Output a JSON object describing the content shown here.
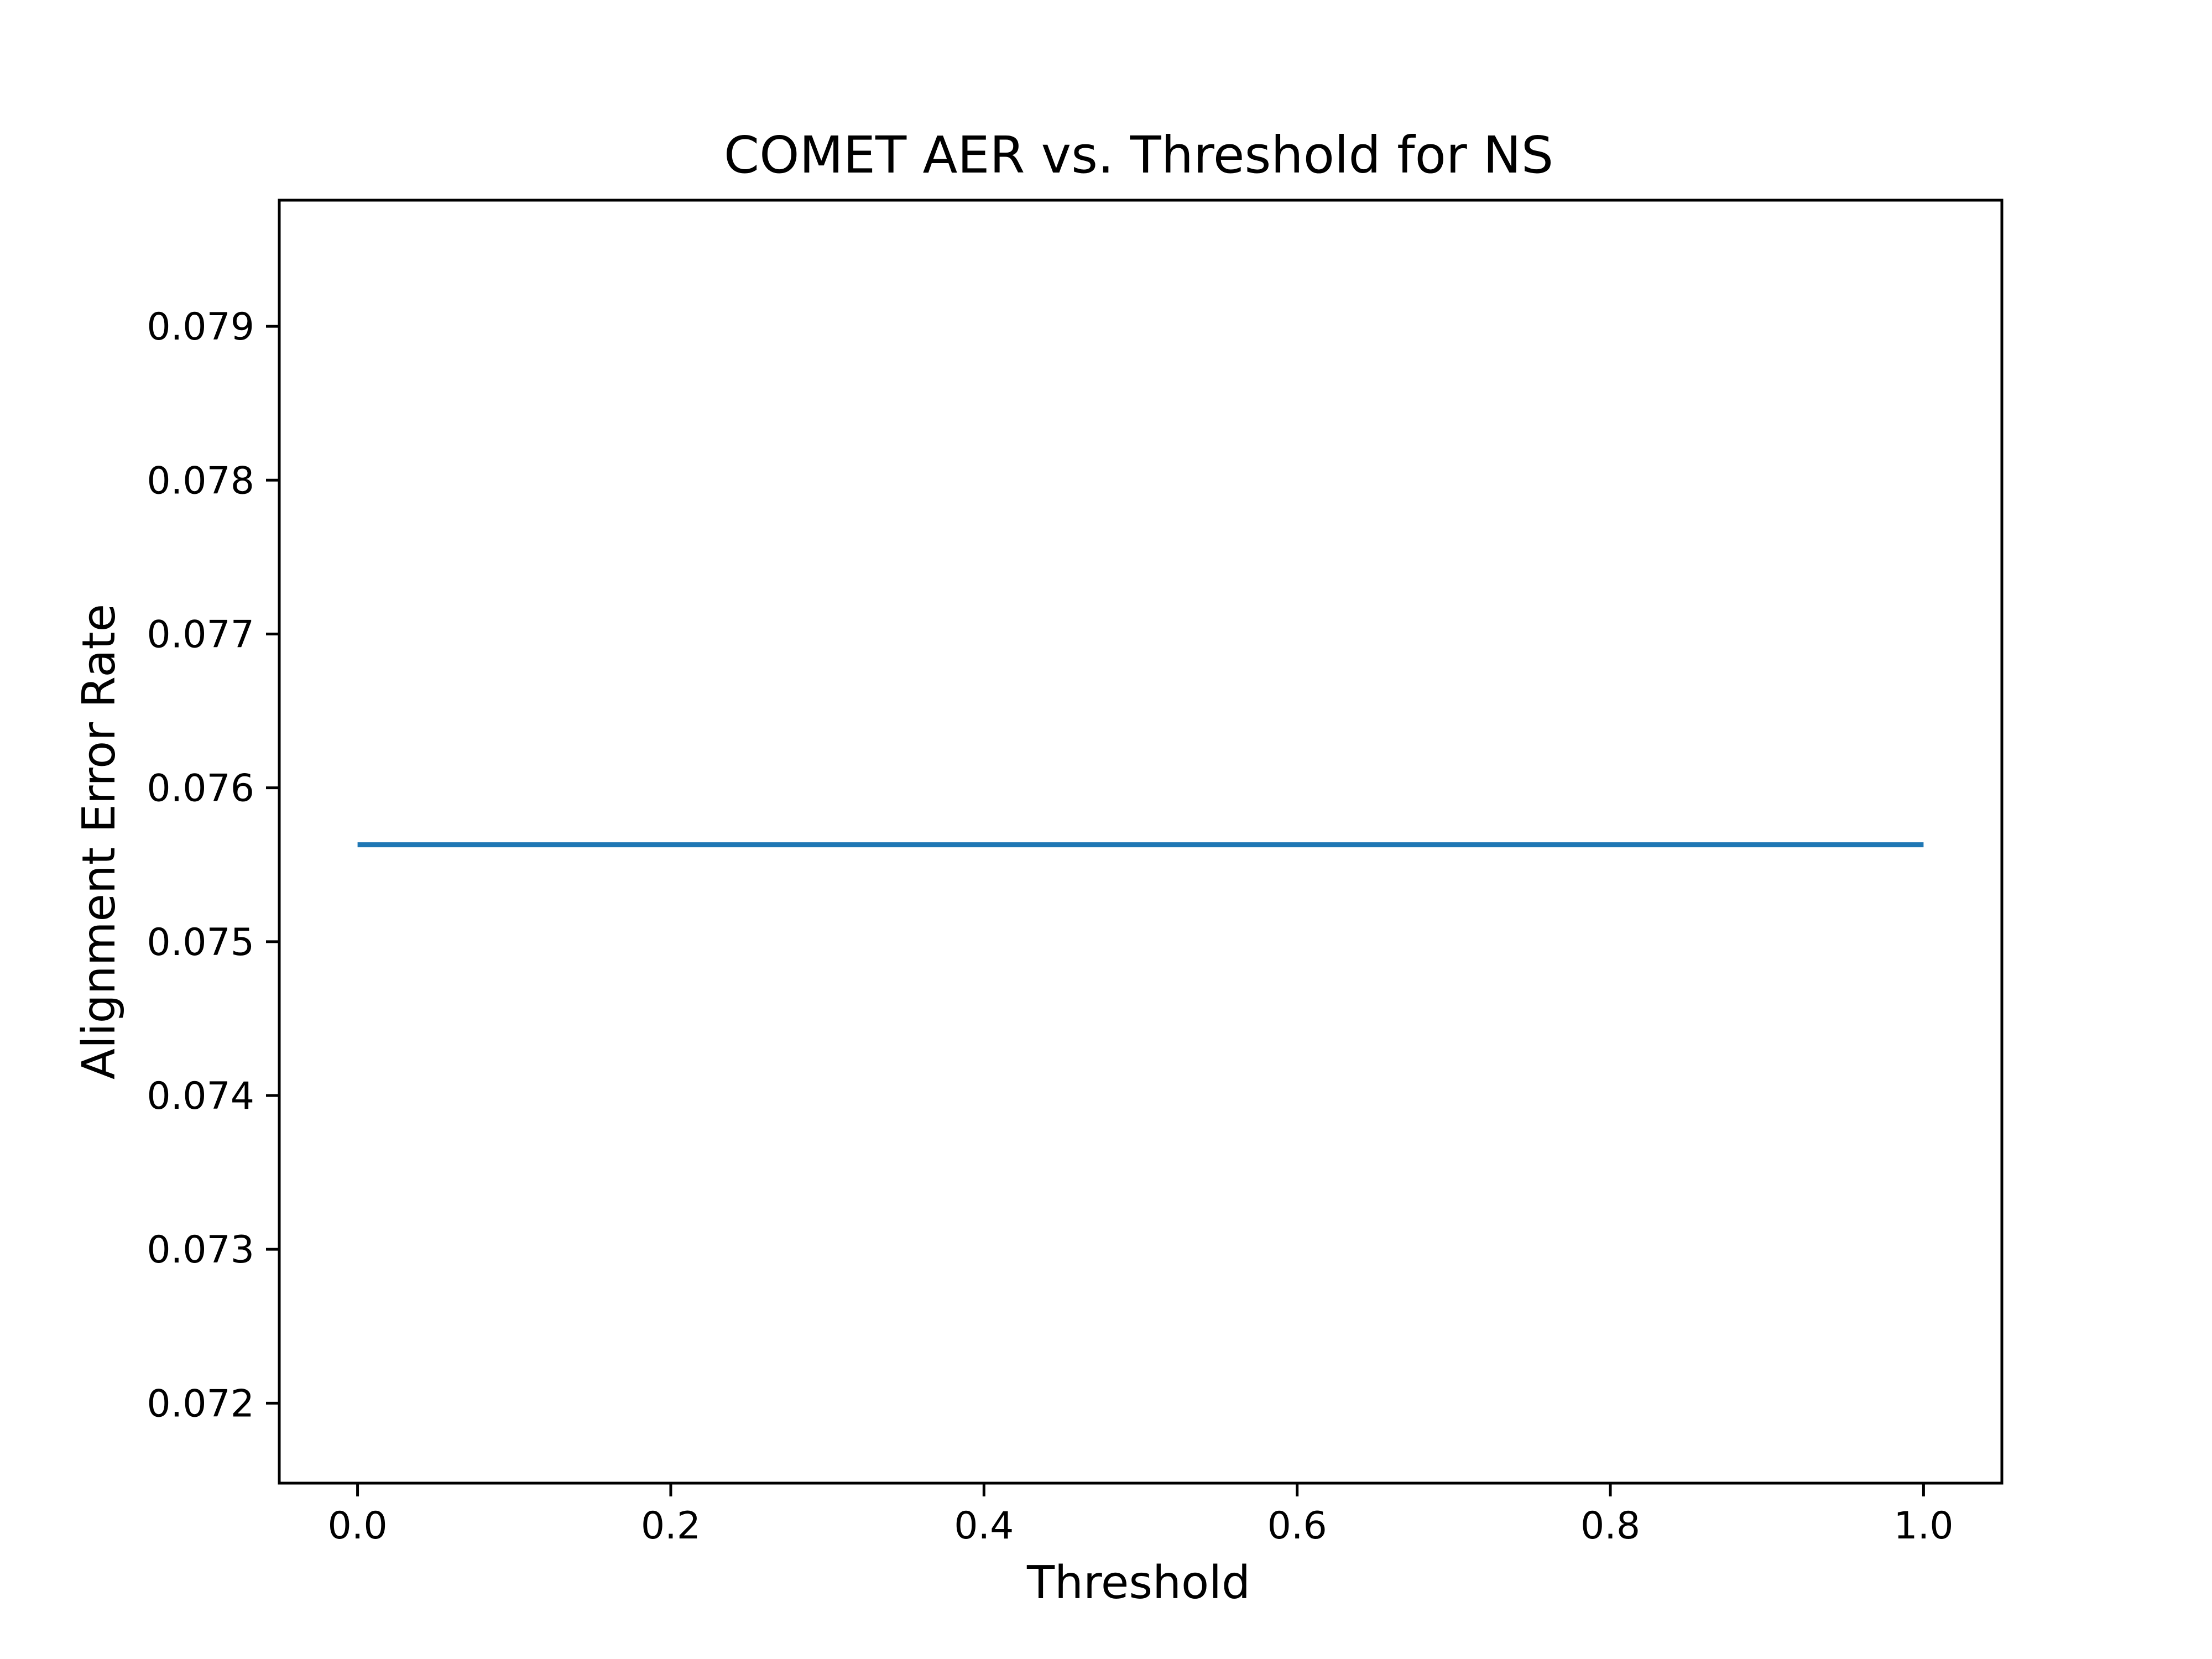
{
  "chart_data": {
    "type": "line",
    "title": "COMET AER vs. Threshold for NS",
    "xlabel": "Threshold",
    "ylabel": "Alignment Error Rate",
    "xlim": [
      -0.05,
      1.05
    ],
    "ylim": [
      0.07148,
      0.07982
    ],
    "xticks": [
      {
        "value": 0.0,
        "label": "0.0"
      },
      {
        "value": 0.2,
        "label": "0.2"
      },
      {
        "value": 0.4,
        "label": "0.4"
      },
      {
        "value": 0.6,
        "label": "0.6"
      },
      {
        "value": 0.8,
        "label": "0.8"
      },
      {
        "value": 1.0,
        "label": "1.0"
      }
    ],
    "yticks": [
      {
        "value": 0.072,
        "label": "0.072"
      },
      {
        "value": 0.073,
        "label": "0.073"
      },
      {
        "value": 0.074,
        "label": "0.074"
      },
      {
        "value": 0.075,
        "label": "0.075"
      },
      {
        "value": 0.076,
        "label": "0.076"
      },
      {
        "value": 0.077,
        "label": "0.077"
      },
      {
        "value": 0.078,
        "label": "0.078"
      },
      {
        "value": 0.079,
        "label": "0.079"
      }
    ],
    "grid": false,
    "series": [
      {
        "color": "#1f77b4",
        "x": [
          0.0,
          0.1,
          0.2,
          0.3,
          0.4,
          0.5,
          0.6,
          0.7,
          0.8,
          0.9,
          1.0
        ],
        "y": [
          0.07563,
          0.07563,
          0.07563,
          0.07563,
          0.07563,
          0.07563,
          0.07563,
          0.07563,
          0.07563,
          0.07563,
          0.07563
        ]
      }
    ]
  }
}
